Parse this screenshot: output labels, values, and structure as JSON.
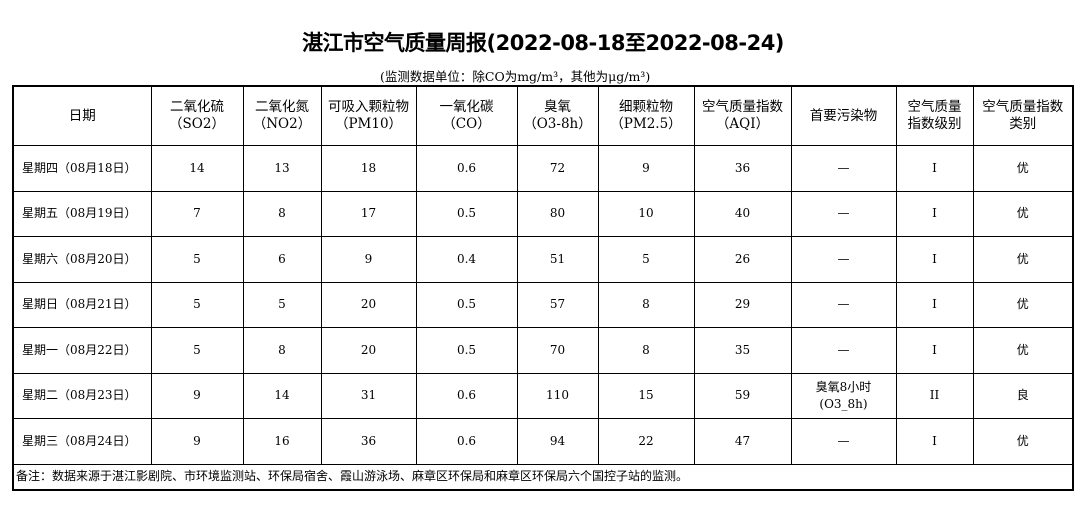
{
  "title": "湛江市空气质量周报(2022-08-18至2022-08-24)",
  "subtitle": "(监测数据单位：除CO为mg/m³，其他为μg/m³)",
  "headers": [
    {
      "l1": "日期",
      "l2": ""
    },
    {
      "l1": "二氧化硫",
      "l2": "（SO2）"
    },
    {
      "l1": "二氧化氮",
      "l2": "（NO2）"
    },
    {
      "l1": "可吸入颗粒物",
      "l2": "（PM10）"
    },
    {
      "l1": "一氧化碳",
      "l2": "（CO）"
    },
    {
      "l1": "臭氧",
      "l2": "（O3-8h）"
    },
    {
      "l1": "细颗粒物",
      "l2": "（PM2.5）"
    },
    {
      "l1": "空气质量指数",
      "l2": "（AQI）"
    },
    {
      "l1": "首要污染物",
      "l2": ""
    },
    {
      "l1": "空气质量",
      "l2": "指数级别"
    },
    {
      "l1": "空气质量指数",
      "l2": "类别"
    }
  ],
  "rows": [
    [
      "星期四（08月18日）",
      "14",
      "13",
      "18",
      "0.6",
      "72",
      "9",
      "36",
      "—",
      "I",
      "优"
    ],
    [
      "星期五（08月19日）",
      "7",
      "8",
      "17",
      "0.5",
      "80",
      "10",
      "40",
      "—",
      "I",
      "优"
    ],
    [
      "星期六（08月20日）",
      "5",
      "6",
      "9",
      "0.4",
      "51",
      "5",
      "26",
      "—",
      "I",
      "优"
    ],
    [
      "星期日（08月21日）",
      "5",
      "5",
      "20",
      "0.5",
      "57",
      "8",
      "29",
      "—",
      "I",
      "优"
    ],
    [
      "星期一（08月22日）",
      "5",
      "8",
      "20",
      "0.5",
      "70",
      "8",
      "35",
      "—",
      "I",
      "优"
    ],
    [
      "星期二（08月23日）",
      "9",
      "14",
      "31",
      "0.6",
      "110",
      "15",
      "59",
      "臭氧8小时\n(O3_8h)",
      "II",
      "良"
    ],
    [
      "星期三（08月24日）",
      "9",
      "16",
      "36",
      "0.6",
      "94",
      "22",
      "47",
      "—",
      "I",
      "优"
    ]
  ],
  "note": "备注：数据来源于湛江影剧院、市环境监测站、环保局宿舍、霞山游泳场、麻章区环保局和麻章区环保局六个国控子站的监测。"
}
